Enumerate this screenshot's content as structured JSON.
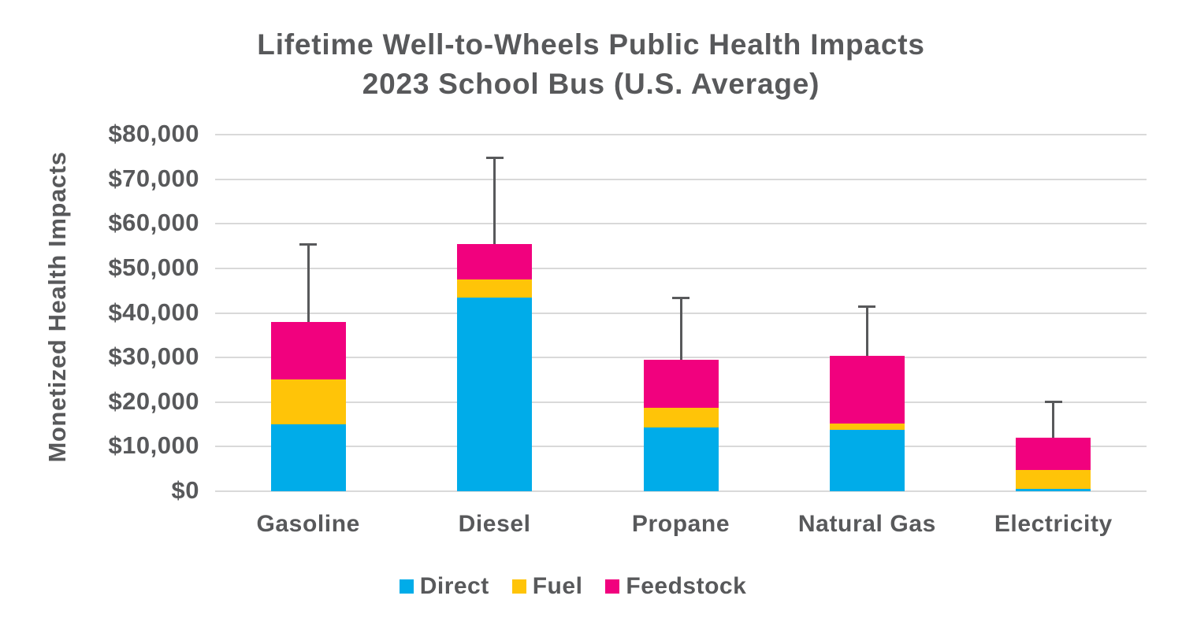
{
  "chart_data": {
    "type": "bar",
    "stacked": true,
    "title": "Lifetime Well-to-Wheels Public Health Impacts",
    "subtitle": "2023 School Bus (U.S. Average)",
    "ylabel": "Monetized Health Impacts",
    "xlabel": "",
    "categories": [
      "Gasoline",
      "Diesel",
      "Propane",
      "Natural Gas",
      "Electricity"
    ],
    "series": [
      {
        "name": "Direct",
        "color": "#00ACE9",
        "values": [
          15000,
          43500,
          14300,
          13700,
          500
        ]
      },
      {
        "name": "Fuel",
        "color": "#FFC408",
        "values": [
          10000,
          4000,
          4500,
          1500,
          4300
        ]
      },
      {
        "name": "Feedstock",
        "color": "#F1017E",
        "values": [
          13000,
          8000,
          10700,
          15100,
          7200
        ]
      }
    ],
    "stack_totals": [
      38000,
      55500,
      29500,
      30300,
      12000
    ],
    "error_bars_high": [
      55500,
      74800,
      43500,
      41500,
      20200
    ],
    "ylim": [
      0,
      80000
    ],
    "yticks": [
      {
        "value": 0,
        "label": "$0"
      },
      {
        "value": 10000,
        "label": "$10,000"
      },
      {
        "value": 20000,
        "label": "$20,000"
      },
      {
        "value": 30000,
        "label": "$30,000"
      },
      {
        "value": 40000,
        "label": "$40,000"
      },
      {
        "value": 50000,
        "label": "$50,000"
      },
      {
        "value": 60000,
        "label": "$60,000"
      },
      {
        "value": 70000,
        "label": "$70,000"
      },
      {
        "value": 80000,
        "label": "$80,000"
      }
    ],
    "grid": true,
    "legend_position": "bottom",
    "legend_entries": [
      "Direct",
      "Fuel",
      "Feedstock"
    ]
  },
  "style": {
    "text_color": "#58595B",
    "grid_color": "#D9D9D9",
    "error_bar_color": "#58595B",
    "background": "#FFFFFF"
  }
}
